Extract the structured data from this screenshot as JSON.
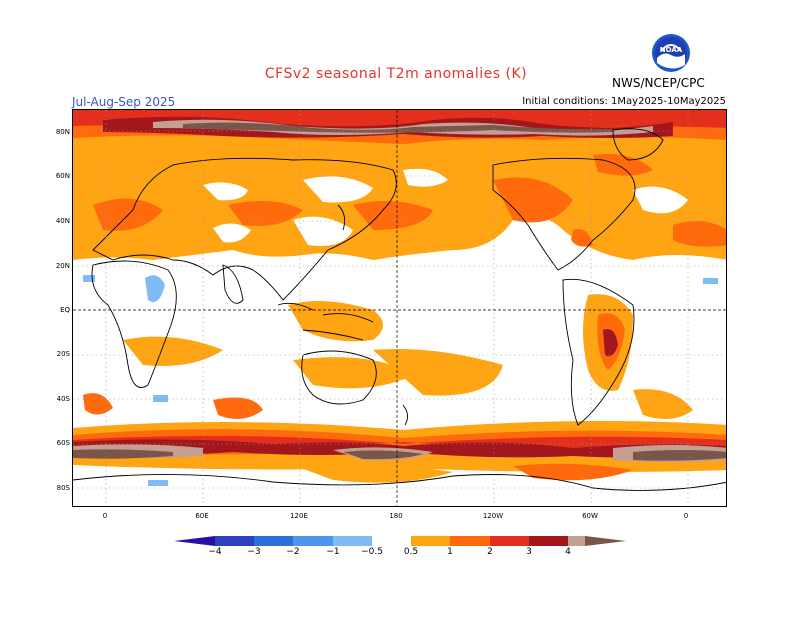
{
  "header": {
    "title": "CFSv2 seasonal T2m anomalies (K)",
    "period": "Jul-Aug-Sep 2025",
    "initial_conditions": "Initial conditions: 1May2025-10May2025",
    "agency": "NWS/NCEP/CPC",
    "logo_text": "NOAA"
  },
  "map": {
    "lat_labels": [
      "80N",
      "60N",
      "40N",
      "20N",
      "EQ",
      "20S",
      "40S",
      "60S",
      "80S"
    ],
    "lon_labels": [
      "0",
      "60E",
      "120E",
      "180",
      "120W",
      "60W",
      "0"
    ]
  },
  "legend": {
    "labels": [
      "−4",
      "−3",
      "−2",
      "−1",
      "−0.5",
      "0.5",
      "1",
      "2",
      "3",
      "4"
    ],
    "colors": {
      "lt_-4": "#2a12a0",
      "-4_-3": "#2f3fc2",
      "-3_-2": "#2d6fd8",
      "-2_-1": "#4c96f0",
      "-1_-0.5": "#7fbcf5",
      "-0.5_0.5": "#ffffff",
      "0.5_1": "#ffa412",
      "1_2": "#ff6a0d",
      "2_3": "#e42f1c",
      "3_4": "#a3171c",
      "4_5": "#c49f92",
      "gt_5": "#7a5549"
    }
  }
}
